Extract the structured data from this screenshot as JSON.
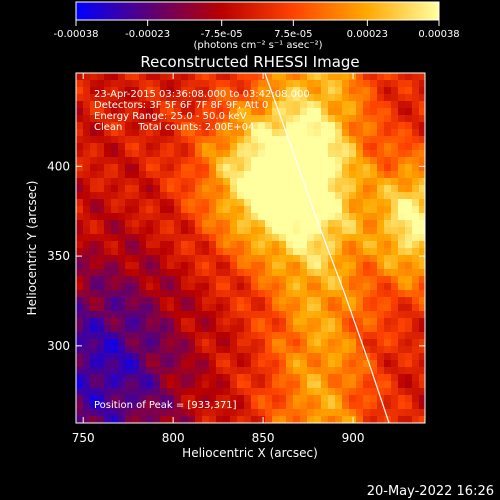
{
  "colorbar": {
    "tick_labels": [
      "-0.00038",
      "-0.00023",
      "-7.5e-05",
      "7.5e-05",
      "0.00023",
      "0.00038"
    ],
    "tick_values": [
      -0.00038,
      -0.00023,
      -7.5e-05,
      7.5e-05,
      0.00023,
      0.00038
    ],
    "range": [
      -0.00038,
      0.00038
    ],
    "units": "(photons cm⁻² s⁻¹ asec⁻²)",
    "palette": [
      "#0000ff",
      "#5a0078",
      "#b80000",
      "#ff4400",
      "#ffa800",
      "#ffffa0"
    ]
  },
  "chart_data": {
    "type": "heatmap",
    "title": "Reconstructed RHESSI Image",
    "xlabel": "Heliocentric X (arcsec)",
    "ylabel": "Heliocentric Y (arcsec)",
    "xlim": [
      746,
      940
    ],
    "ylim": [
      257,
      452
    ],
    "x_ticks": [
      750,
      800,
      850,
      900
    ],
    "y_ticks": [
      300,
      350,
      400
    ],
    "x_tick_labels": [
      "750",
      "800",
      "850",
      "900"
    ],
    "y_tick_labels": [
      "300",
      "350",
      "400"
    ],
    "annotations": {
      "time": "23-Apr-2015 03:36:08.000 to 03:42:08.000",
      "detectors": "Detectors: 3F 5F 6F 7F 8F 9F, Att 0",
      "energy": "Energy Range: 25.0 - 50.0 keV",
      "method": "Clean     Total counts: 2.00E+04",
      "peak": "Position of Peak = [933,371]"
    },
    "peak_position": [
      933,
      371
    ],
    "limb_curve": {
      "x": [
        851,
        866,
        880,
        895,
        909,
        920
      ],
      "y": [
        452,
        410,
        370,
        330,
        290,
        257
      ]
    }
  },
  "footer": {
    "timestamp": "20-May-2022 16:26"
  }
}
